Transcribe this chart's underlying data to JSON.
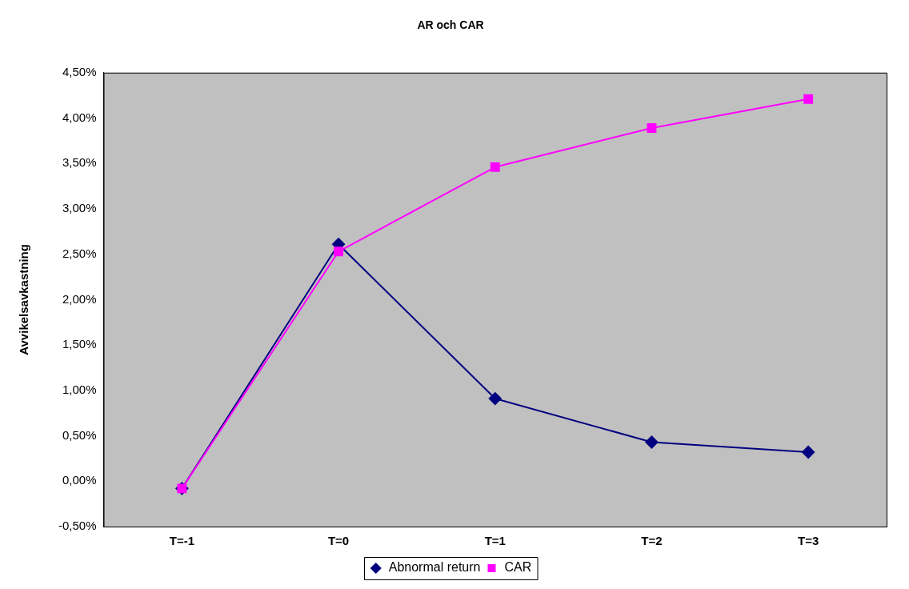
{
  "chart_data": {
    "type": "line",
    "title": "AR och CAR",
    "ylabel": "Avvikelsavkastning",
    "categories": [
      "T=-1",
      "T=0",
      "T=1",
      "T=2",
      "T=3"
    ],
    "series": [
      {
        "name": "Abnormal return",
        "color": "#000080",
        "marker": "diamond",
        "values": [
          -0.08,
          2.61,
          0.91,
          0.43,
          0.32
        ]
      },
      {
        "name": "CAR",
        "color": "#ff00ff",
        "marker": "square",
        "values": [
          -0.08,
          2.53,
          3.46,
          3.89,
          4.21
        ]
      }
    ],
    "ylim": [
      -0.5,
      4.5
    ],
    "yticks": [
      {
        "value": -0.5,
        "label": "-0,50%"
      },
      {
        "value": 0,
        "label": "0,00%"
      },
      {
        "value": 0.5,
        "label": "0,50%"
      },
      {
        "value": 1,
        "label": "1,00%"
      },
      {
        "value": 1.5,
        "label": "1,50%"
      },
      {
        "value": 2,
        "label": "2,00%"
      },
      {
        "value": 2.5,
        "label": "2,50%"
      },
      {
        "value": 3,
        "label": "3,00%"
      },
      {
        "value": 3.5,
        "label": "3,50%"
      },
      {
        "value": 4,
        "label": "4,00%"
      },
      {
        "value": 4.5,
        "label": "4,50%"
      }
    ],
    "grid": false,
    "legend": "bottom",
    "line_style": "solid"
  }
}
